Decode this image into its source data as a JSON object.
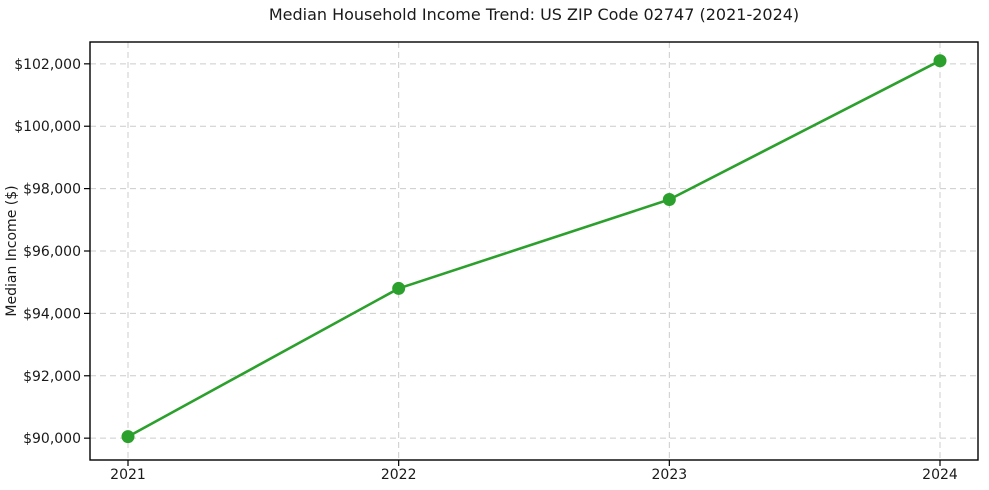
{
  "chart_data": {
    "type": "line",
    "title": "Median Household Income Trend: US ZIP Code 02747 (2021-2024)",
    "xlabel": "",
    "ylabel": "Median Income ($)",
    "categories": [
      "2021",
      "2022",
      "2023",
      "2024"
    ],
    "series": [
      {
        "name": "Median Household Income",
        "values": [
          90050,
          94800,
          97650,
          102100
        ]
      }
    ],
    "y_ticks": [
      90000,
      92000,
      94000,
      96000,
      98000,
      100000,
      102000
    ],
    "y_tick_labels": [
      "$90,000",
      "$92,000",
      "$94,000",
      "$96,000",
      "$98,000",
      "$100,000",
      "$102,000"
    ],
    "ylim": [
      89300,
      102700
    ],
    "grid": "both",
    "grid_style": "dashed",
    "legend_position": "none",
    "line_color": "#2ca02c",
    "marker": "circle",
    "grid_color": "#cccccc",
    "axis_color": "#000000",
    "background_color": "#ffffff",
    "text_color": "#1a1a1a"
  }
}
